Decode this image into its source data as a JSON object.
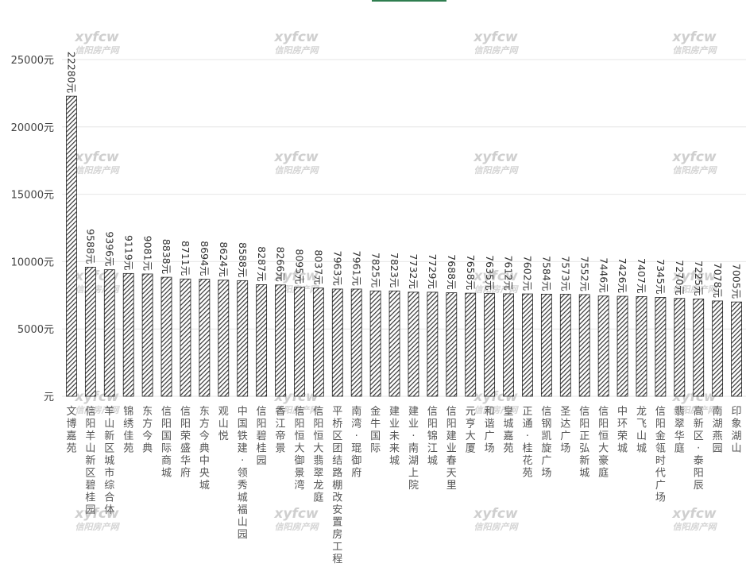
{
  "chart_data": {
    "type": "bar",
    "categories": [
      "文博嘉苑",
      "信阳羊山新区碧桂园",
      "羊山新区城市综合体",
      "锦绣佳苑",
      "东方今典",
      "信阳国际商城",
      "信阳荣盛华府",
      "东方今典中央城",
      "观山悦",
      "中国铁建·领秀城福山园",
      "信阳碧桂园",
      "香江帝景",
      "信阳恒大御景湾",
      "信阳恒大翡翠龙庭",
      "平桥区团结路棚改安置房工程",
      "南湾·琨御府",
      "金牛国际",
      "建业未来城",
      "建业·南湖上院",
      "信阳锦江城",
      "信阳建业春天里",
      "元亨大厦",
      "和谐广场",
      "皇城嘉苑",
      "正通·桂花苑",
      "信钢凯旋广场",
      "圣达广场",
      "信阳正弘新城",
      "信阳恒大豪庭",
      "中环荣城",
      "龙飞山城",
      "信阳金瓴时代广场",
      "翡翠华庭",
      "高新区·泰阳辰",
      "南湖燕园",
      "印象湖山"
    ],
    "values": [
      22280,
      9588,
      9396,
      9119,
      9081,
      8838,
      8711,
      8694,
      8624,
      8588,
      8287,
      8266,
      8095,
      8037,
      7963,
      7961,
      7825,
      7823,
      7732,
      7729,
      7688,
      7658,
      7635,
      7612,
      7602,
      7584,
      7573,
      7552,
      7446,
      7426,
      7407,
      7345,
      7270,
      7225,
      7078,
      7005
    ],
    "value_labels": [
      "22280元",
      "9588元",
      "9396元",
      "9119元",
      "9081元",
      "8838元",
      "8711元",
      "8694元",
      "8624元",
      "8588元",
      "8287元",
      "8266元",
      "8095元",
      "8037元",
      "7963元",
      "7961元",
      "7825元",
      "7823元",
      "7732元",
      "7729元",
      "7688元",
      "7658元",
      "7635元",
      "7612元",
      "7602元",
      "7584元",
      "7573元",
      "7552元",
      "7446元",
      "7426元",
      "7407元",
      "7345元",
      "7270元",
      "7225元",
      "7078元",
      "7005元"
    ],
    "yticks": [
      "元",
      "5000元",
      "10000元",
      "15000元",
      "20000元",
      "25000元"
    ],
    "ylim": [
      0,
      25000
    ],
    "grid": true,
    "colors": {
      "bar_stroke": "#222222",
      "bar_hatch": "#333333",
      "grid": "#e6e6e6",
      "top_accent": "#2e7d4f"
    }
  },
  "watermark": {
    "line1": "xyfcw",
    "line2": "信阳房产网"
  }
}
